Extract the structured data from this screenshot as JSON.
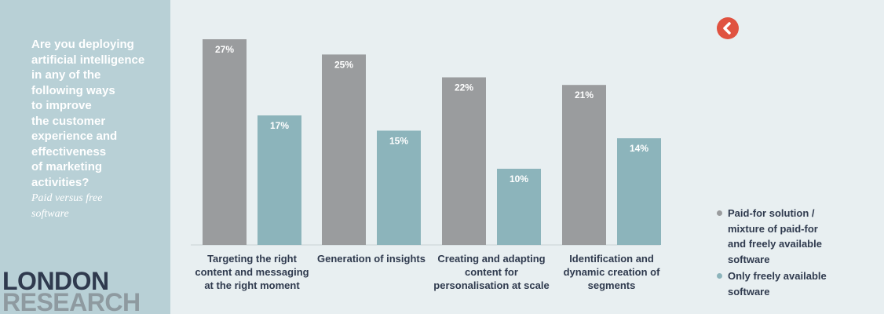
{
  "sidebar": {
    "question": "Are you deploying\nartificial intelligence\nin any of the\nfollowing ways\nto improve\nthe customer\nexperience and\neffectiveness\nof marketing\nactivities?",
    "subtitle": "Paid versus free\nsoftware",
    "logo_line1": "LONDON",
    "logo_line2": "RESEARCH"
  },
  "colors": {
    "paid": "#9a9c9e",
    "free": "#8cb4bb",
    "accent": "#e05240"
  },
  "back_icon": "chevron-left-icon",
  "chart_data": {
    "type": "bar",
    "categories": [
      "Targeting the right\ncontent and messaging\nat the right moment",
      "Generation of insights",
      "Creating and adapting\ncontent for\npersonalisation at scale",
      "Identification and\ndynamic creation of\nsegments"
    ],
    "series": [
      {
        "name": "Paid-for solution /\nmixture of paid-for\nand freely available\nsoftware",
        "values": [
          27,
          25,
          22,
          21
        ],
        "labels": [
          "27%",
          "25%",
          "22%",
          "21%"
        ]
      },
      {
        "name": "Only freely available\nsoftware",
        "values": [
          17,
          15,
          10,
          14
        ],
        "labels": [
          "17%",
          "15%",
          "10%",
          "14%"
        ]
      }
    ],
    "ylim": [
      0,
      27
    ],
    "grid": false,
    "legend_position": "bottom-right"
  }
}
